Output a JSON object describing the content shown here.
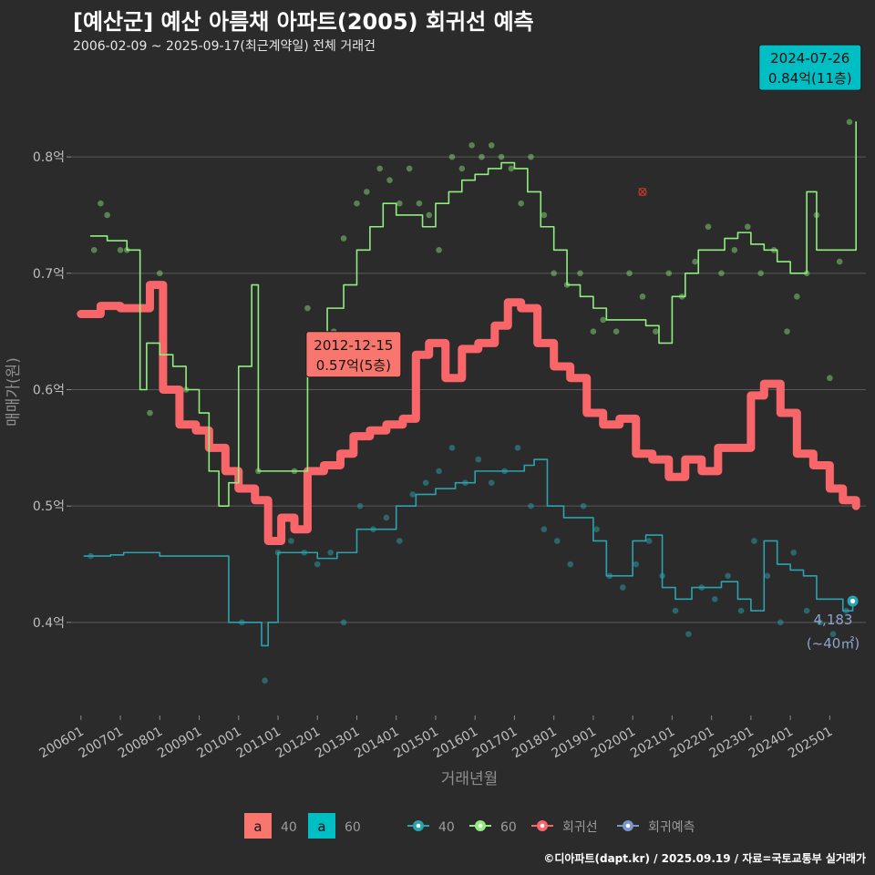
{
  "header": {
    "title": "[예산군] 예산 아름채 아파트(2005) 회귀선 예측",
    "subtitle": "2006-02-09 ~ 2025-09-17(최근계약일) 전체 거래건"
  },
  "footer": {
    "credit": "©디아파트(dapt.kr) / 2025.09.19 / 자료=국토교통부 실거래가"
  },
  "colors": {
    "s40": "#2aa3ae",
    "s60": "#90ee7e",
    "regression": "#f8666a",
    "predict": "#7a96c8",
    "label40_bg": "#f8766d",
    "label60_bg": "#00bfc4",
    "grid": "#5a5a5a",
    "background": "#2b2b2b"
  },
  "annotations": [
    {
      "line1": "2012-12-15",
      "line2": "0.57억(5층)",
      "at_x": "2012-12",
      "at_y": 0.57
    },
    {
      "line1": "2024-07-26",
      "line2": "0.84억(11층)",
      "at_x": "2024-07",
      "at_y": 0.84
    }
  ],
  "end_label": {
    "line1": "4,183",
    "line2": "(~40㎡)"
  },
  "legend": {
    "label_items": [
      {
        "key": "a",
        "text": "40"
      },
      {
        "key": "a",
        "text": "60"
      }
    ],
    "line_items": [
      {
        "text": "40"
      },
      {
        "text": "60"
      },
      {
        "text": "회귀선"
      },
      {
        "text": "회귀예측"
      }
    ]
  },
  "chart_data": {
    "type": "line",
    "title": "[예산군] 예산 아름채 아파트(2005) 회귀선 예측",
    "xlabel": "거래년월",
    "ylabel": "매매가(원)",
    "x_ticks": [
      "200601",
      "200701",
      "200801",
      "200901",
      "201001",
      "201101",
      "201201",
      "201301",
      "201401",
      "201501",
      "201601",
      "201701",
      "201801",
      "201901",
      "202001",
      "202101",
      "202201",
      "202301",
      "202401",
      "202501"
    ],
    "y_ticks": [
      "0.4억",
      "0.5억",
      "0.6억",
      "0.7억",
      "0.8억"
    ],
    "y_tick_values": [
      0.4,
      0.5,
      0.6,
      0.7,
      0.8
    ],
    "xlim": [
      "2005-10",
      "2025-12"
    ],
    "ylim": [
      0.32,
      0.88
    ],
    "grid": true,
    "legend_position": "bottom",
    "series": [
      {
        "name": "60",
        "type": "line",
        "x": [
          "2006-04",
          "2006-09",
          "2007-03",
          "2007-07",
          "2007-09",
          "2008-01",
          "2008-05",
          "2008-09",
          "2009-01",
          "2009-04",
          "2009-07",
          "2009-10",
          "2010-01",
          "2010-05",
          "2010-07",
          "2010-10",
          "2011-04",
          "2011-10",
          "2012-04",
          "2012-09",
          "2013-01",
          "2013-05",
          "2013-09",
          "2014-01",
          "2014-05",
          "2014-09",
          "2015-01",
          "2015-05",
          "2015-09",
          "2016-01",
          "2016-05",
          "2016-09",
          "2017-01",
          "2017-05",
          "2017-09",
          "2018-01",
          "2018-05",
          "2018-09",
          "2019-01",
          "2019-05",
          "2019-09",
          "2020-01",
          "2020-05",
          "2020-09",
          "2021-01",
          "2021-05",
          "2021-09",
          "2022-01",
          "2022-05",
          "2022-09",
          "2023-01",
          "2023-05",
          "2023-09",
          "2024-01",
          "2024-03",
          "2024-06",
          "2024-09",
          "2025-01",
          "2025-05",
          "2025-09"
        ],
        "y": [
          0.732,
          0.728,
          0.72,
          0.6,
          0.64,
          0.63,
          0.62,
          0.6,
          0.58,
          0.53,
          0.5,
          0.52,
          0.62,
          0.69,
          0.53,
          0.53,
          0.53,
          0.64,
          0.67,
          0.69,
          0.72,
          0.74,
          0.76,
          0.75,
          0.75,
          0.74,
          0.76,
          0.77,
          0.78,
          0.785,
          0.79,
          0.795,
          0.79,
          0.77,
          0.74,
          0.72,
          0.69,
          0.68,
          0.67,
          0.66,
          0.66,
          0.66,
          0.655,
          0.64,
          0.68,
          0.7,
          0.72,
          0.72,
          0.73,
          0.735,
          0.725,
          0.72,
          0.71,
          0.7,
          0.7,
          0.77,
          0.72,
          0.72,
          0.72,
          0.83
        ]
      },
      {
        "name": "40",
        "type": "line",
        "x": [
          "2006-02",
          "2006-10",
          "2007-02",
          "2007-06",
          "2008-01",
          "2008-07",
          "2009-10",
          "2010-02",
          "2010-08",
          "2010-10",
          "2011-01",
          "2011-07",
          "2012-01",
          "2012-07",
          "2013-01",
          "2013-07",
          "2014-01",
          "2014-07",
          "2015-01",
          "2015-07",
          "2016-01",
          "2016-07",
          "2017-01",
          "2017-04",
          "2017-07",
          "2017-11",
          "2018-04",
          "2018-09",
          "2019-01",
          "2019-05",
          "2019-09",
          "2020-01",
          "2020-05",
          "2020-10",
          "2021-02",
          "2021-07",
          "2021-12",
          "2022-04",
          "2022-09",
          "2023-01",
          "2023-05",
          "2023-09",
          "2024-01",
          "2024-05",
          "2024-09",
          "2025-01",
          "2025-05",
          "2025-08"
        ],
        "y": [
          0.457,
          0.458,
          0.46,
          0.46,
          0.457,
          0.457,
          0.4,
          0.4,
          0.38,
          0.4,
          0.46,
          0.46,
          0.455,
          0.46,
          0.48,
          0.48,
          0.5,
          0.51,
          0.515,
          0.52,
          0.53,
          0.53,
          0.53,
          0.535,
          0.54,
          0.5,
          0.49,
          0.49,
          0.47,
          0.44,
          0.44,
          0.47,
          0.475,
          0.43,
          0.42,
          0.43,
          0.43,
          0.435,
          0.42,
          0.41,
          0.47,
          0.45,
          0.445,
          0.44,
          0.42,
          0.42,
          0.41,
          0.418
        ]
      },
      {
        "name": "회귀선",
        "type": "line",
        "x": [
          "2006-01",
          "2006-07",
          "2007-01",
          "2007-06",
          "2007-10",
          "2008-02",
          "2008-07",
          "2008-12",
          "2009-04",
          "2009-09",
          "2010-01",
          "2010-06",
          "2010-10",
          "2011-02",
          "2011-06",
          "2011-10",
          "2012-03",
          "2012-08",
          "2012-12",
          "2013-05",
          "2013-10",
          "2014-03",
          "2014-07",
          "2014-11",
          "2015-04",
          "2015-09",
          "2016-02",
          "2016-07",
          "2016-11",
          "2017-03",
          "2017-08",
          "2018-01",
          "2018-06",
          "2018-11",
          "2019-04",
          "2019-09",
          "2020-02",
          "2020-07",
          "2020-12",
          "2021-05",
          "2021-10",
          "2022-03",
          "2022-08",
          "2023-01",
          "2023-05",
          "2023-10",
          "2024-03",
          "2024-08",
          "2025-01",
          "2025-05",
          "2025-09"
        ],
        "y": [
          0.665,
          0.672,
          0.67,
          0.67,
          0.69,
          0.6,
          0.57,
          0.565,
          0.55,
          0.53,
          0.515,
          0.505,
          0.47,
          0.49,
          0.48,
          0.53,
          0.535,
          0.545,
          0.56,
          0.565,
          0.57,
          0.575,
          0.63,
          0.64,
          0.61,
          0.635,
          0.64,
          0.655,
          0.675,
          0.67,
          0.64,
          0.62,
          0.61,
          0.58,
          0.57,
          0.575,
          0.545,
          0.54,
          0.525,
          0.54,
          0.53,
          0.55,
          0.55,
          0.595,
          0.605,
          0.58,
          0.545,
          0.535,
          0.515,
          0.505,
          0.5
        ]
      },
      {
        "name": "회귀예측",
        "type": "point",
        "x": [
          "2025-08"
        ],
        "y": [
          0.4183
        ]
      }
    ],
    "scatter_points": {
      "s60": [
        [
          "2006-05",
          0.72
        ],
        [
          "2006-07",
          0.76
        ],
        [
          "2006-09",
          0.75
        ],
        [
          "2007-01",
          0.72
        ],
        [
          "2007-03",
          0.72
        ],
        [
          "2007-10",
          0.58
        ],
        [
          "2008-01",
          0.7
        ],
        [
          "2008-04",
          0.6
        ],
        [
          "2008-09",
          0.6
        ],
        [
          "2009-08",
          0.55
        ],
        [
          "2010-07",
          0.53
        ],
        [
          "2011-06",
          0.53
        ],
        [
          "2011-10",
          0.67
        ],
        [
          "2012-02",
          0.63
        ],
        [
          "2012-06",
          0.65
        ],
        [
          "2012-09",
          0.73
        ],
        [
          "2013-01",
          0.76
        ],
        [
          "2013-04",
          0.77
        ],
        [
          "2013-08",
          0.79
        ],
        [
          "2013-11",
          0.78
        ],
        [
          "2014-02",
          0.76
        ],
        [
          "2014-05",
          0.79
        ],
        [
          "2014-08",
          0.76
        ],
        [
          "2014-11",
          0.75
        ],
        [
          "2015-02",
          0.72
        ],
        [
          "2015-06",
          0.8
        ],
        [
          "2015-09",
          0.79
        ],
        [
          "2015-12",
          0.81
        ],
        [
          "2016-03",
          0.8
        ],
        [
          "2016-06",
          0.81
        ],
        [
          "2016-09",
          0.8
        ],
        [
          "2016-12",
          0.79
        ],
        [
          "2017-03",
          0.76
        ],
        [
          "2017-06",
          0.8
        ],
        [
          "2017-10",
          0.75
        ],
        [
          "2018-01",
          0.7
        ],
        [
          "2018-05",
          0.69
        ],
        [
          "2018-09",
          0.7
        ],
        [
          "2019-01",
          0.65
        ],
        [
          "2019-04",
          0.66
        ],
        [
          "2019-08",
          0.65
        ],
        [
          "2019-12",
          0.7
        ],
        [
          "2020-04",
          0.68
        ],
        [
          "2020-08",
          0.65
        ],
        [
          "2020-12",
          0.7
        ],
        [
          "2021-04",
          0.68
        ],
        [
          "2021-08",
          0.71
        ],
        [
          "2021-12",
          0.74
        ],
        [
          "2022-04",
          0.7
        ],
        [
          "2022-08",
          0.72
        ],
        [
          "2022-12",
          0.74
        ],
        [
          "2023-04",
          0.7
        ],
        [
          "2023-08",
          0.72
        ],
        [
          "2023-12",
          0.65
        ],
        [
          "2024-03",
          0.68
        ],
        [
          "2024-06",
          0.7
        ],
        [
          "2024-09",
          0.75
        ],
        [
          "2025-01",
          0.61
        ],
        [
          "2025-04",
          0.71
        ],
        [
          "2025-07",
          0.83
        ]
      ],
      "s40": [
        [
          "2006-04",
          0.457
        ],
        [
          "2010-02",
          0.4
        ],
        [
          "2010-09",
          0.35
        ],
        [
          "2011-01",
          0.46
        ],
        [
          "2011-05",
          0.47
        ],
        [
          "2011-09",
          0.46
        ],
        [
          "2012-01",
          0.45
        ],
        [
          "2012-05",
          0.46
        ],
        [
          "2012-09",
          0.4
        ],
        [
          "2013-02",
          0.5
        ],
        [
          "2013-06",
          0.48
        ],
        [
          "2013-10",
          0.49
        ],
        [
          "2014-02",
          0.47
        ],
        [
          "2014-06",
          0.51
        ],
        [
          "2014-10",
          0.52
        ],
        [
          "2015-02",
          0.53
        ],
        [
          "2015-06",
          0.55
        ],
        [
          "2015-10",
          0.52
        ],
        [
          "2016-02",
          0.54
        ],
        [
          "2016-06",
          0.52
        ],
        [
          "2016-10",
          0.53
        ],
        [
          "2017-02",
          0.55
        ],
        [
          "2017-06",
          0.5
        ],
        [
          "2017-10",
          0.48
        ],
        [
          "2018-02",
          0.47
        ],
        [
          "2018-06",
          0.45
        ],
        [
          "2018-10",
          0.5
        ],
        [
          "2019-02",
          0.48
        ],
        [
          "2019-06",
          0.44
        ],
        [
          "2019-10",
          0.43
        ],
        [
          "2020-02",
          0.45
        ],
        [
          "2020-06",
          0.47
        ],
        [
          "2020-10",
          0.44
        ],
        [
          "2021-02",
          0.41
        ],
        [
          "2021-06",
          0.39
        ],
        [
          "2021-10",
          0.43
        ],
        [
          "2022-02",
          0.42
        ],
        [
          "2022-06",
          0.44
        ],
        [
          "2022-10",
          0.41
        ],
        [
          "2023-02",
          0.47
        ],
        [
          "2023-06",
          0.44
        ],
        [
          "2023-10",
          0.4
        ],
        [
          "2024-02",
          0.46
        ],
        [
          "2024-06",
          0.41
        ],
        [
          "2024-10",
          0.4
        ],
        [
          "2025-02",
          0.39
        ],
        [
          "2025-06",
          0.41
        ]
      ]
    },
    "outlier_marker": {
      "x": "2020-04",
      "y": 0.77
    }
  }
}
